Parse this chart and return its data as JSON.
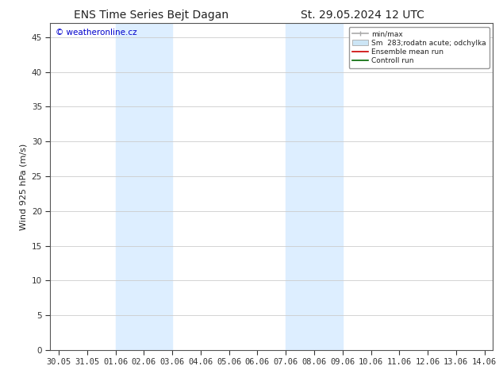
{
  "title_left": "ENS Time Series Bejt Dagan",
  "title_right": "St. 29.05.2024 12 UTC",
  "ylabel": "Wind 925 hPa (m/s)",
  "watermark": "© weatheronline.cz",
  "watermark_color": "#0000cc",
  "background_color": "#ffffff",
  "plot_bg_color": "#ffffff",
  "shaded_regions": [
    {
      "xmin": 2.0,
      "xmax": 4.0,
      "color": "#ddeeff"
    },
    {
      "xmin": 8.0,
      "xmax": 10.0,
      "color": "#ddeeff"
    }
  ],
  "x_tick_labels": [
    "30.05",
    "31.05",
    "01.06",
    "02.06",
    "03.06",
    "04.06",
    "05.06",
    "06.06",
    "07.06",
    "08.06",
    "09.06",
    "10.06",
    "11.06",
    "12.06",
    "13.06",
    "14.06"
  ],
  "x_tick_positions": [
    0,
    1,
    2,
    3,
    4,
    5,
    6,
    7,
    8,
    9,
    10,
    11,
    12,
    13,
    14,
    15
  ],
  "ylim": [
    0,
    47
  ],
  "yticks": [
    0,
    5,
    10,
    15,
    20,
    25,
    30,
    35,
    40,
    45
  ],
  "xlim": [
    -0.3,
    15.3
  ],
  "legend_label_minmax": "min/max",
  "legend_label_band": "Sm  283;rodatn acute; odchylka",
  "legend_label_ensemble": "Ensemble mean run",
  "legend_label_control": "Controll run",
  "color_minmax": "#aaaaaa",
  "color_band": "#cce5f5",
  "color_ensemble": "#cc0000",
  "color_control": "#006600",
  "grid_color": "#cccccc",
  "axis_color": "#555555",
  "tick_color": "#333333",
  "font_color": "#222222",
  "title_fontsize": 10,
  "label_fontsize": 8,
  "tick_fontsize": 7.5
}
